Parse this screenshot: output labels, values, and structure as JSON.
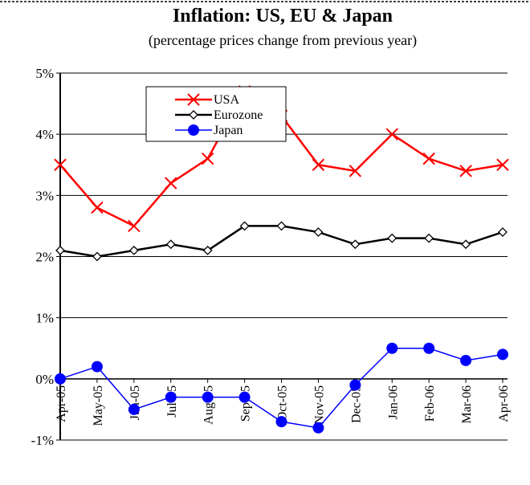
{
  "chart_data": {
    "type": "line",
    "title": "Inflation: US, EU & Japan",
    "subtitle": "(percentage prices change from previous year)",
    "categories": [
      "Apr-05",
      "May-05",
      "Jun-05",
      "Jul-05",
      "Aug-05",
      "Sep-05",
      "Oct-05",
      "Nov-05",
      "Dec-05",
      "Jan-06",
      "Feb-06",
      "Mar-06",
      "Apr-06"
    ],
    "series": [
      {
        "name": "USA",
        "color": "#ff0000",
        "marker": "x",
        "values": [
          3.5,
          2.8,
          2.5,
          3.2,
          3.6,
          4.7,
          4.3,
          3.5,
          3.4,
          4.0,
          3.6,
          3.4,
          3.5
        ]
      },
      {
        "name": "Eurozone",
        "color": "#000000",
        "marker": "diamond",
        "values": [
          2.1,
          2.0,
          2.1,
          2.2,
          2.1,
          2.5,
          2.5,
          2.4,
          2.2,
          2.3,
          2.3,
          2.2,
          2.4
        ]
      },
      {
        "name": "Japan",
        "color": "#0000ff",
        "marker": "circle",
        "values": [
          0,
          0.2,
          -0.5,
          -0.3,
          -0.3,
          -0.3,
          -0.7,
          -0.8,
          -0.1,
          0.5,
          0.5,
          0.3,
          0.4
        ]
      }
    ],
    "ylim": [
      -1,
      5
    ],
    "yticks": [
      {
        "value": -1,
        "label": "-1%"
      },
      {
        "value": 0,
        "label": "0%"
      },
      {
        "value": 1,
        "label": "1%"
      },
      {
        "value": 2,
        "label": "2%"
      },
      {
        "value": 3,
        "label": "3%"
      },
      {
        "value": 4,
        "label": "4%"
      },
      {
        "value": 5,
        "label": "5%"
      }
    ],
    "grid": true,
    "legend": "top-left"
  }
}
